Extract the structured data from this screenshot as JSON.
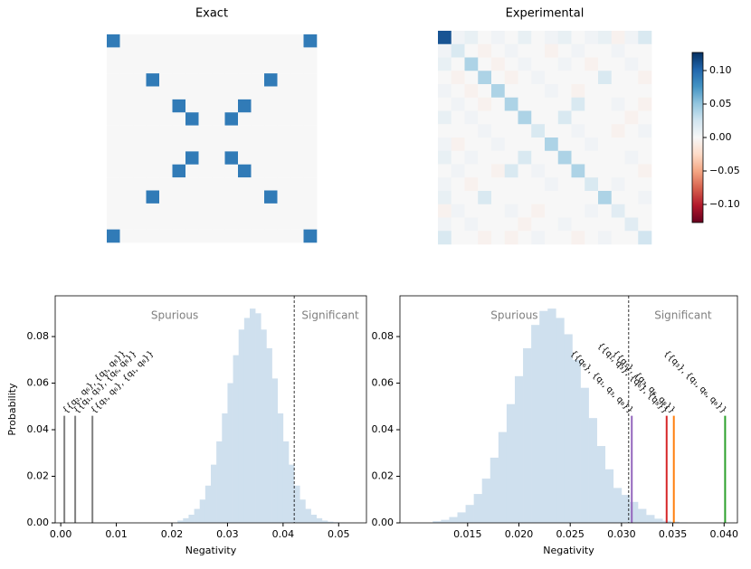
{
  "chart_data": [
    {
      "type": "heatmap",
      "title": "Exact",
      "colormap": "RdBu",
      "zlim": [
        -0.127,
        0.127
      ],
      "z": [
        [
          0.09,
          0,
          0,
          0,
          0,
          0,
          0,
          0,
          0,
          0,
          0,
          0,
          0,
          0,
          0,
          0.09
        ],
        [
          0,
          0,
          0,
          0,
          0,
          0,
          0,
          0,
          0,
          0,
          0,
          0,
          0,
          0,
          0,
          0
        ],
        [
          0,
          0,
          0,
          0,
          0,
          0,
          0,
          0,
          0,
          0,
          0,
          0,
          0,
          0,
          0,
          0
        ],
        [
          0,
          0,
          0,
          0.09,
          0,
          0,
          0,
          0,
          0,
          0,
          0,
          0,
          0.09,
          0,
          0,
          0
        ],
        [
          0,
          0,
          0,
          0,
          0,
          0,
          0,
          0,
          0,
          0,
          0,
          0,
          0,
          0,
          0,
          0
        ],
        [
          0,
          0,
          0,
          0,
          0,
          0.09,
          0,
          0,
          0,
          0,
          0.09,
          0,
          0,
          0,
          0,
          0
        ],
        [
          0,
          0,
          0,
          0,
          0,
          0,
          0.09,
          0,
          0,
          0.09,
          0,
          0,
          0,
          0,
          0,
          0
        ],
        [
          0,
          0,
          0,
          0,
          0,
          0,
          0,
          0,
          0,
          0,
          0,
          0,
          0,
          0,
          0,
          0
        ],
        [
          0,
          0,
          0,
          0,
          0,
          0,
          0,
          0,
          0,
          0,
          0,
          0,
          0,
          0,
          0,
          0
        ],
        [
          0,
          0,
          0,
          0,
          0,
          0,
          0.09,
          0,
          0,
          0.09,
          0,
          0,
          0,
          0,
          0,
          0
        ],
        [
          0,
          0,
          0,
          0,
          0,
          0.09,
          0,
          0,
          0,
          0,
          0.09,
          0,
          0,
          0,
          0,
          0
        ],
        [
          0,
          0,
          0,
          0,
          0,
          0,
          0,
          0,
          0,
          0,
          0,
          0,
          0,
          0,
          0,
          0
        ],
        [
          0,
          0,
          0,
          0.09,
          0,
          0,
          0,
          0,
          0,
          0,
          0,
          0,
          0.09,
          0,
          0,
          0
        ],
        [
          0,
          0,
          0,
          0,
          0,
          0,
          0,
          0,
          0,
          0,
          0,
          0,
          0,
          0,
          0,
          0
        ],
        [
          0,
          0,
          0,
          0,
          0,
          0,
          0,
          0,
          0,
          0,
          0,
          0,
          0,
          0,
          0,
          0
        ],
        [
          0.09,
          0,
          0,
          0,
          0,
          0,
          0,
          0,
          0,
          0,
          0,
          0,
          0,
          0,
          0,
          0.09
        ]
      ]
    },
    {
      "type": "heatmap",
      "title": "Experimental",
      "colormap": "RdBu",
      "zlim": [
        -0.127,
        0.127
      ],
      "colorbar_ticks": [
        {
          "value": 0.1,
          "label": "0.10"
        },
        0.05,
        {
          "value": 0,
          "label": "0.00"
        },
        {
          "value": -0.05,
          "label": "−0.05"
        },
        {
          "value": -0.1,
          "label": "−0.10"
        }
      ],
      "z": [
        [
          0.11,
          0.005,
          0.01,
          0,
          0.005,
          0,
          0.01,
          0,
          0.005,
          0.01,
          0,
          0.005,
          0.01,
          -0.005,
          0.005,
          0.02
        ],
        [
          0.005,
          0.02,
          0,
          -0.005,
          0,
          0.005,
          0,
          0,
          -0.005,
          0,
          0.005,
          0,
          0,
          0.005,
          0,
          0
        ],
        [
          0.01,
          0,
          0.04,
          0,
          -0.005,
          0,
          0.005,
          0,
          0,
          0.005,
          0,
          -0.005,
          0,
          0,
          0.005,
          0
        ],
        [
          0,
          -0.005,
          0,
          0.04,
          0,
          -0.005,
          0,
          0.005,
          0,
          0,
          0,
          0,
          0.02,
          0,
          0,
          -0.005
        ],
        [
          0.005,
          0,
          -0.005,
          0,
          0.04,
          0,
          0,
          0,
          0.005,
          0,
          -0.005,
          0,
          0,
          0,
          0,
          0
        ],
        [
          0,
          0.005,
          0,
          -0.005,
          0,
          0.04,
          0,
          0,
          0,
          0,
          0.02,
          0,
          0,
          0.005,
          0,
          -0.005
        ],
        [
          0.01,
          0,
          0.005,
          0,
          0,
          0,
          0.04,
          0,
          0,
          0.02,
          0,
          0,
          0,
          0,
          -0.005,
          0
        ],
        [
          0,
          0,
          0,
          0.005,
          0,
          0,
          0,
          0.02,
          0,
          0,
          0.005,
          0,
          0,
          -0.005,
          0,
          0.005
        ],
        [
          0.005,
          -0.005,
          0,
          0,
          0.005,
          0,
          0,
          0,
          0.04,
          0,
          0,
          0.005,
          0,
          0,
          0,
          0
        ],
        [
          0.01,
          0,
          0.005,
          0,
          0,
          0,
          0.02,
          0,
          0,
          0.04,
          0,
          0,
          0,
          0,
          0.005,
          0
        ],
        [
          0,
          0.005,
          0,
          0,
          -0.005,
          0.02,
          0,
          0.005,
          0,
          0,
          0.04,
          0,
          0,
          0,
          0,
          -0.005
        ],
        [
          0.005,
          0,
          -0.005,
          0,
          0,
          0,
          0,
          0,
          0.005,
          0,
          0,
          0.02,
          0,
          0.005,
          0,
          0
        ],
        [
          0.01,
          0,
          0,
          0.02,
          0,
          0,
          0,
          0,
          0,
          0,
          0,
          0,
          0.04,
          0,
          0,
          0.005
        ],
        [
          -0.005,
          0.005,
          0,
          0,
          0,
          0.005,
          0,
          -0.005,
          0,
          0,
          0,
          0.005,
          0,
          0.015,
          0,
          0
        ],
        [
          0.005,
          0,
          0.005,
          0,
          0,
          0,
          -0.005,
          0,
          0,
          0.005,
          0,
          0,
          0,
          0,
          0.015,
          0
        ],
        [
          0.02,
          0,
          0,
          -0.005,
          0,
          -0.005,
          0,
          0.005,
          0,
          0,
          -0.005,
          0,
          0.005,
          0,
          0,
          0.025
        ]
      ]
    },
    {
      "type": "histogram",
      "xlabel": "Negativity",
      "ylabel": "Probability",
      "color": "#cfe0ee",
      "bins": [
        0.021,
        0.022,
        0.023,
        0.024,
        0.025,
        0.026,
        0.027,
        0.028,
        0.029,
        0.03,
        0.031,
        0.032,
        0.033,
        0.034,
        0.035,
        0.036,
        0.037,
        0.038,
        0.039,
        0.04,
        0.041,
        0.042,
        0.043,
        0.044,
        0.045,
        0.046,
        0.047,
        0.048,
        0.049,
        0.05,
        0.051
      ],
      "values": [
        0.001,
        0.002,
        0.0035,
        0.006,
        0.01,
        0.016,
        0.025,
        0.035,
        0.047,
        0.06,
        0.072,
        0.083,
        0.088,
        0.092,
        0.09,
        0.083,
        0.075,
        0.062,
        0.047,
        0.035,
        0.025,
        0.016,
        0.01,
        0.006,
        0.0035,
        0.002,
        0.001,
        0.0005,
        0.0003,
        0.0001
      ],
      "xlim": [
        -0.001,
        0.055
      ],
      "ylim": [
        0,
        0.0975
      ],
      "xticks": [
        {
          "value": 0,
          "label": "0.00"
        },
        0.01,
        0.02,
        0.03,
        0.04,
        0.05
      ],
      "yticks": [
        {
          "value": 0,
          "label": "0.00"
        },
        0.02,
        0.04,
        0.06,
        0.08
      ],
      "threshold": 0.042,
      "left_label": "Spurious",
      "right_label": "Significant",
      "label_rotation": -45,
      "markers": [
        {
          "label": "{{q₂, q₆}, {q₃, q₈}}",
          "x": 0.00065,
          "value": 0.046,
          "color": "#808080"
        },
        {
          "label": "{{q₁, q₃}, {q₆, q₈}}",
          "x": 0.0026,
          "value": 0.046,
          "color": "#808080"
        },
        {
          "label": "{{q₃, q₆}, {q₁, q₈}}",
          "x": 0.0057,
          "value": 0.046,
          "color": "#808080"
        }
      ]
    },
    {
      "type": "histogram",
      "xlabel": "Negativity",
      "color": "#cfe0ee",
      "bins": [
        0.0116,
        0.0124,
        0.0132,
        0.014,
        0.0148,
        0.0156,
        0.0164,
        0.0172,
        0.018,
        0.0188,
        0.0196,
        0.0204,
        0.0212,
        0.022,
        0.0228,
        0.0236,
        0.0244,
        0.0252,
        0.026,
        0.0268,
        0.0276,
        0.0284,
        0.0292,
        0.03,
        0.0308,
        0.0316,
        0.0324,
        0.0332,
        0.034,
        0.0348,
        0.0356,
        0.0364
      ],
      "values": [
        0.0007,
        0.0013,
        0.0025,
        0.0045,
        0.0077,
        0.0124,
        0.019,
        0.028,
        0.039,
        0.051,
        0.063,
        0.075,
        0.085,
        0.091,
        0.092,
        0.088,
        0.081,
        0.07,
        0.058,
        0.045,
        0.033,
        0.023,
        0.015,
        0.012,
        0.009,
        0.006,
        0.0034,
        0.0018,
        0.0009,
        0.0005,
        0.0002
      ],
      "xlim": [
        0.0084,
        0.0413
      ],
      "ylim": [
        0,
        0.0975
      ],
      "xticks": [
        0.015,
        {
          "value": 0.02,
          "label": "0.020"
        },
        0.025,
        {
          "value": 0.03,
          "label": "0.030"
        },
        0.035,
        {
          "value": 0.04,
          "label": "0.040"
        }
      ],
      "yticks": [
        {
          "value": 0,
          "label": "0.00"
        },
        0.02,
        0.04,
        0.06,
        0.08
      ],
      "threshold": 0.0307,
      "left_label": "Spurious",
      "right_label": "Significant",
      "label_rotation": 45,
      "markers": [
        {
          "label": "{{q₆}, {q₁, q₃, q₈}}",
          "x": 0.031,
          "value": 0.046,
          "color": "#9467bd"
        },
        {
          "label": "{{q₁, q₃}, {q₆}, {q₈}}",
          "x": 0.0344,
          "value": 0.046,
          "color": "#d62728"
        },
        {
          "label": "{{q₁}, {q₃, q₆, q₈}}",
          "x": 0.0351,
          "value": 0.046,
          "color": "#ff7f0e"
        },
        {
          "label": "{{q₃}, {q₁, q₆, q₈}}",
          "x": 0.0401,
          "value": 0.046,
          "color": "#2ca02c"
        }
      ]
    }
  ]
}
